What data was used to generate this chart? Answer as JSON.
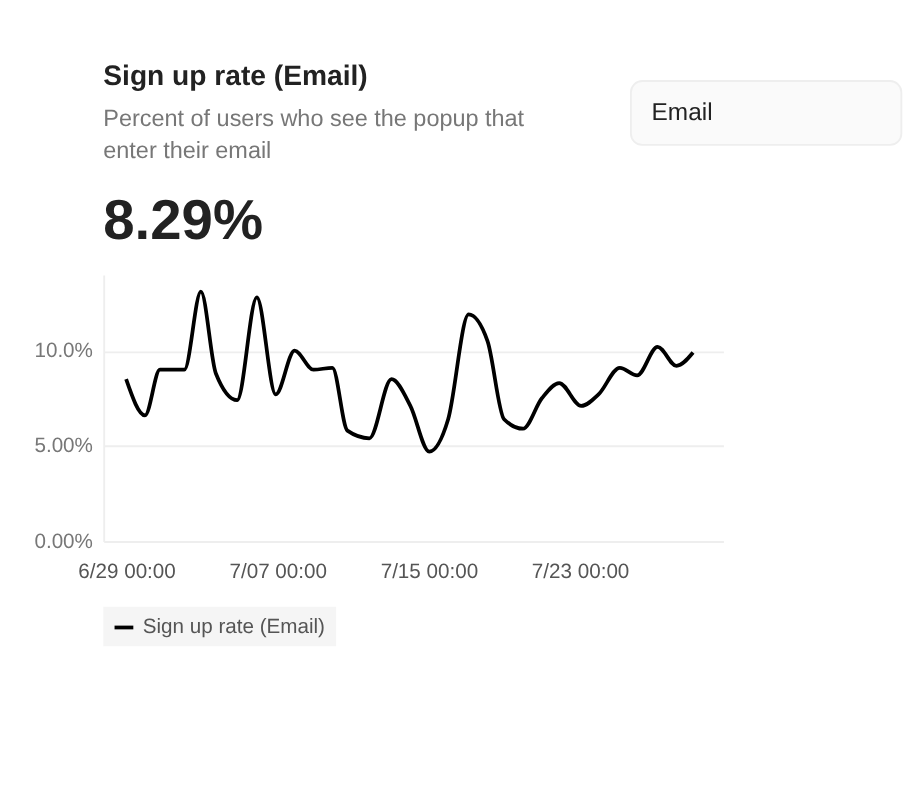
{
  "chart_data": {
    "type": "line",
    "title": "Sign up rate (Email)",
    "subtitle": "Percent of users who see the popup that enter their email",
    "annotations": [
      "8.29%",
      "Email"
    ],
    "x": [
      "--06-29T00:00",
      "--06-30T00:00",
      "--06-30T19:00",
      "--07-02T02:00",
      "--07-02T23:00",
      "--07-03T18:00",
      "--07-04T21:00",
      "--07-05T22:00",
      "--07-06T22:00",
      "--07-07T22:00",
      "--07-08T22:00",
      "--07-09T22:00",
      "--07-10T17:00",
      "--07-11T21:00",
      "--07-13T01:00",
      "--07-14T01:00",
      "--07-15T01:00",
      "--07-16T01:00",
      "--07-17T03:00",
      "--07-18T03:00",
      "--07-19T00:00",
      "--07-20T00:00",
      "--07-21T00:00",
      "--07-21T22:00",
      "--07-23T02:00",
      "--07-24T00:00",
      "--07-25T03:00",
      "--07-26T01:00",
      "--07-27T03:00",
      "--07-28T03:00",
      "--07-29T00:00"
    ],
    "series": [
      {
        "name": "Sign up rate (Email)",
        "color": "#000000",
        "values": [
          8.5,
          6.6,
          9.0,
          9.0,
          13.1,
          8.8,
          7.4,
          12.8,
          7.7,
          10.0,
          9.0,
          9.1,
          5.8,
          5.4,
          8.5,
          7.1,
          4.7,
          6.4,
          11.9,
          10.5,
          6.4,
          5.9,
          7.5,
          8.3,
          7.1,
          7.7,
          9.1,
          8.7,
          10.2,
          9.2,
          9.9
        ]
      }
    ],
    "xlim": [
      "--06-27T19:00",
      "--07-30T14:00"
    ],
    "xticks": [
      {
        "value": "--06-29T00:00",
        "label": "6/29 00:00"
      },
      {
        "value": "--07-07T00:00",
        "label": "7/07 00:00"
      },
      {
        "value": "--07-15T00:00",
        "label": "7/15 00:00"
      },
      {
        "value": "--07-23T00:00",
        "label": "7/23 00:00"
      }
    ],
    "ylim": [
      0,
      14
    ],
    "yticks": [
      {
        "value": 0,
        "label": "0.00%"
      },
      {
        "value": 5,
        "label": "5.00%"
      },
      {
        "value": 10,
        "label": "10.0%"
      }
    ],
    "grid": "y",
    "legend": "bottom",
    "marker": "none",
    "line_style": "solid"
  }
}
